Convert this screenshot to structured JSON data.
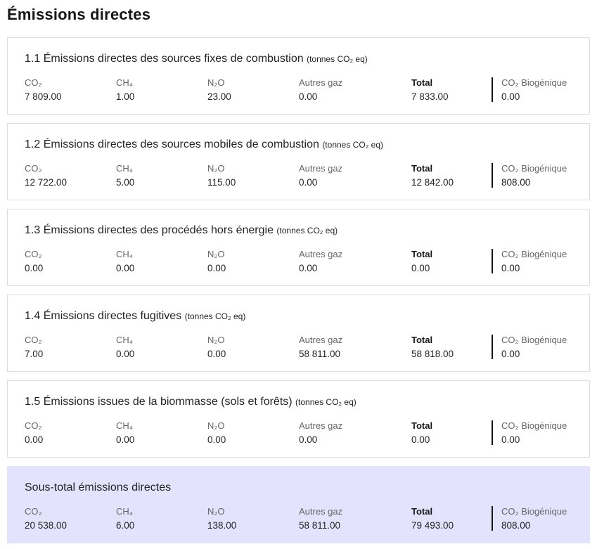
{
  "page": {
    "title": "Émissions directes"
  },
  "columns": [
    "CO₂",
    "CH₄",
    "N₂O",
    "Autres gaz",
    "Total",
    "CO₂ Biogénique"
  ],
  "sections": [
    {
      "title": "1.1 Émissions directes des sources fixes de combustion",
      "unit": "(tonnes CO₂ eq)",
      "values": [
        "7 809.00",
        "1.00",
        "23.00",
        "0.00",
        "7 833.00",
        "0.00"
      ]
    },
    {
      "title": "1.2 Émissions directes des sources mobiles de combustion",
      "unit": "(tonnes CO₂ eq)",
      "values": [
        "12 722.00",
        "5.00",
        "115.00",
        "0.00",
        "12 842.00",
        "808.00"
      ]
    },
    {
      "title": "1.3 Émissions directes des procédés hors énergie",
      "unit": "(tonnes CO₂ eq)",
      "values": [
        "0.00",
        "0.00",
        "0.00",
        "0.00",
        "0.00",
        "0.00"
      ]
    },
    {
      "title": "1.4 Émissions directes fugitives",
      "unit": "(tonnes CO₂ eq)",
      "values": [
        "7.00",
        "0.00",
        "0.00",
        "58 811.00",
        "58 818.00",
        "0.00"
      ]
    },
    {
      "title": "1.5 Émissions issues de la biommasse (sols et forêts)",
      "unit": "(tonnes CO₂ eq)",
      "values": [
        "0.00",
        "0.00",
        "0.00",
        "0.00",
        "0.00",
        "0.00"
      ]
    },
    {
      "title": "Sous-total émissions directes",
      "unit": "",
      "values": [
        "20 538.00",
        "6.00",
        "138.00",
        "58 811.00",
        "79 493.00",
        "808.00"
      ]
    }
  ],
  "colors": {
    "subtotal_background": "#e3e3fd",
    "card_border": "#dddddd",
    "divider": "#161616",
    "label_text": "#666666",
    "value_text": "#242424"
  }
}
